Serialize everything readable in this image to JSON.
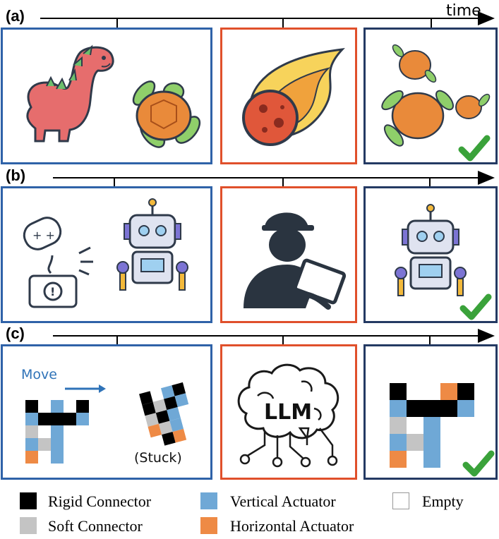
{
  "rows": [
    {
      "label": "(a)",
      "axis_label": "time"
    },
    {
      "label": "(b)",
      "axis_label": ""
    },
    {
      "label": "(c)",
      "axis_label": ""
    }
  ],
  "panel_c": {
    "move_label": "Move",
    "stuck_label": "(Stuck)",
    "llm_label": "LLM"
  },
  "legend": [
    {
      "label": "Rigid Connector",
      "color": "#000000"
    },
    {
      "label": "Vertical Actuator",
      "color": "#6fa8d6"
    },
    {
      "label": "Empty",
      "color": "#ffffff"
    },
    {
      "label": "Soft Connector",
      "color": "#c4c4c4"
    },
    {
      "label": "Horizontal Actuator",
      "color": "#ee8a45"
    }
  ],
  "colors": {
    "panel_blue": "#2f62a8",
    "panel_orange": "#e0502b",
    "panel_navy": "#243a63",
    "check_green": "#3aa23a"
  },
  "icons": [
    "dinosaur-icon",
    "turtle-icon",
    "meteor-icon",
    "turtles-icon",
    "broken-robot-icon",
    "robot-icon",
    "engineer-icon",
    "robot-icon",
    "brain-circuit-icon",
    "checkmark-icon"
  ]
}
